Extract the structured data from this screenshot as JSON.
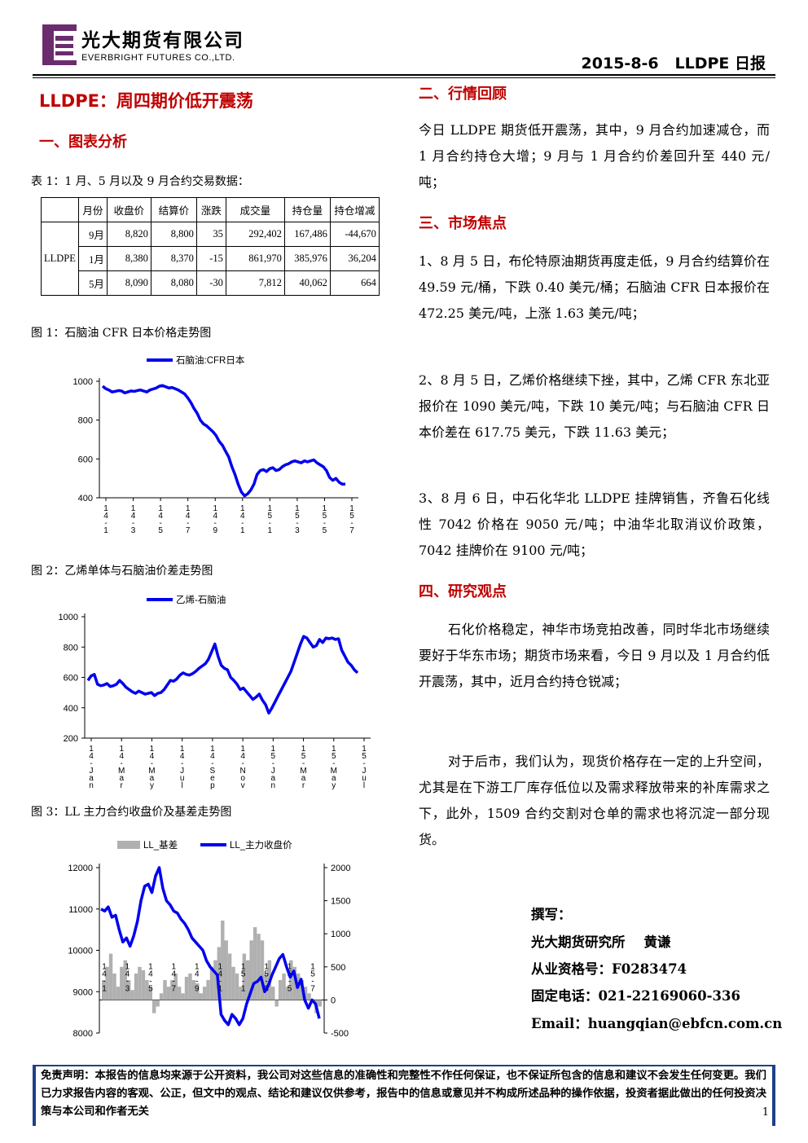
{
  "header": {
    "company_cn": "光大期货有限公司",
    "company_en": "EVERBRIGHT FUTURES CO.,LTD.",
    "report_id": "2015-8-6   LLDPE 日报"
  },
  "title": "LLDPE：周四期价低开震荡",
  "sections": {
    "s1": "一、图表分析",
    "s2": "二、行情回顾",
    "s3": "三、市场焦点",
    "s4": "四、研究观点"
  },
  "table": {
    "caption": "表 1：1 月、5 月以及 9 月合约交易数据：",
    "headers": [
      "",
      "月份",
      "收盘价",
      "结算价",
      "涨跌",
      "成交量",
      "持仓量",
      "持仓增减"
    ],
    "symbol": "LLDPE",
    "rows": [
      [
        "9月",
        "8,820",
        "8,800",
        "35",
        "292,402",
        "167,486",
        "-44,670"
      ],
      [
        "1月",
        "8,380",
        "8,370",
        "-15",
        "861,970",
        "385,976",
        "36,204"
      ],
      [
        "5月",
        "8,090",
        "8,080",
        "-30",
        "7,812",
        "40,062",
        "664"
      ]
    ]
  },
  "figures": {
    "fig1_caption": "图 1：石脑油 CFR 日本价格走势图",
    "fig2_caption": "图 2：乙烯单体与石脑油价差走势图",
    "fig3_caption": "图 3：LL 主力合约收盘价及基差走势图"
  },
  "review": "今日 LLDPE 期货低开震荡，其中，9 月合约加速减仓，而 1 月合约持仓大增；9 月与 1 月合约价差回升至 440 元/吨；",
  "focus": [
    "1、8 月 5 日，布伦特原油期货再度走低，9 月合约结算价在 49.59 元/桶，下跌 0.40 美元/桶；石脑油 CFR 日本报价在 472.25 美元/吨，上涨 1.63 美元/吨；",
    "2、8 月 5 日，乙烯价格继续下挫，其中，乙烯 CFR 东北亚报价在 1090 美元/吨，下跌 10 美元/吨；与石脑油 CFR 日本价差在 617.75 美元，下跌 11.63 美元；",
    "3、8 月 6 日，中石化华北 LLDPE 挂牌销售，齐鲁石化线性 7042 价格在 9050 元/吨；中油华北取消议价政策，7042 挂牌价在 9100 元/吨；"
  ],
  "opinion": [
    "石化价格稳定，神华市场竞拍改善，同时华北市场继续要好于华东市场；期货市场来看，今日 9 月以及 1 月合约低开震荡，其中，近月合约持仓锐减；",
    "对于后市，我们认为，现货价格存在一定的上升空间，尤其是在下游工厂库存低位以及需求释放带来的补库需求之下，此外，1509 合约交割对仓单的需求也将沉淀一部分现货。"
  ],
  "author": {
    "l1": "撰写：",
    "l2": "光大期货研究所    黄谦",
    "l3": "从业资格号：F0283474",
    "l4": "固定电话：021-22169060-336",
    "l5": "Email：huangqian@ebfcn.com.cn"
  },
  "disclaimer": "免责声明：本报告的信息均来源于公开资料，我公司对这些信息的准确性和完整性不作任何保证，也不保证所包含的信息和建议不会发生任何变更。我们已力求报告内容的客观、公正，但文中的观点、结论和建议仅供参考，报告中的信息或意见并不构成所述品种的操作依据，投资者据此做出的任何投资决策与本公司和作者无关",
  "page_number": "1",
  "chart_data": [
    {
      "type": "line",
      "legend": "石脑油:CFR日本",
      "ylim": [
        400,
        1000
      ],
      "yticks": [
        "1000",
        "800",
        "600",
        "400"
      ],
      "xticks": [
        "1\n4\n-\n1",
        "1\n4\n-\n3",
        "1\n4\n-\n5",
        "1\n4\n-\n7",
        "1\n4\n-\n9",
        "1\n4\n-\n1",
        "1\n5\n-\n1",
        "1\n5\n-\n3",
        "1\n5\n-\n5",
        "1\n5\n-\n7"
      ],
      "series": [
        {
          "name": "石脑油:CFR日本",
          "color": "#0000ee",
          "values": [
            975,
            962,
            955,
            945,
            948,
            952,
            950,
            940,
            945,
            950,
            948,
            952,
            955,
            950,
            945,
            955,
            960,
            965,
            975,
            978,
            972,
            965,
            968,
            962,
            955,
            945,
            935,
            915,
            890,
            860,
            835,
            800,
            780,
            770,
            755,
            740,
            720,
            690,
            670,
            640,
            610,
            560,
            520,
            470,
            430,
            410,
            420,
            440,
            470,
            520,
            540,
            545,
            535,
            550,
            555,
            540,
            545,
            560,
            570,
            575,
            585,
            590,
            585,
            580,
            590,
            585,
            590,
            595,
            580,
            570,
            560,
            540,
            505,
            490,
            500,
            480,
            470,
            470
          ]
        }
      ]
    },
    {
      "type": "line",
      "legend": "乙烯-石脑油",
      "ylim": [
        200,
        1000
      ],
      "yticks": [
        "1000",
        "800",
        "600",
        "400",
        "200"
      ],
      "xticks": [
        "1\n4\n-\nJ\na\nn",
        "1\n4\n-\nM\na\nr",
        "1\n4\n-\nM\na\ny",
        "1\n4\n-\nJ\nu\nl",
        "1\n4\n-\nS\ne\np",
        "1\n4\n-\nN\no\nv",
        "1\n5\n-\nJ\na\nn",
        "1\n5\n-\nM\na\nr",
        "1\n5\n-\nM\na\ny",
        "1\n5\n-\nJ\nu\nl"
      ],
      "series": [
        {
          "name": "乙烯-石脑油",
          "color": "#0000ee",
          "values": [
            580,
            610,
            620,
            555,
            545,
            550,
            560,
            540,
            545,
            555,
            580,
            560,
            535,
            520,
            505,
            495,
            510,
            500,
            490,
            495,
            500,
            480,
            495,
            500,
            520,
            550,
            580,
            575,
            590,
            615,
            630,
            620,
            615,
            625,
            640,
            660,
            675,
            690,
            720,
            770,
            820,
            740,
            680,
            660,
            650,
            600,
            580,
            555,
            520,
            530,
            505,
            480,
            455,
            470,
            490,
            450,
            420,
            365,
            400,
            440,
            480,
            520,
            560,
            600,
            640,
            700,
            760,
            820,
            870,
            860,
            830,
            800,
            810,
            850,
            830,
            860,
            855,
            860,
            850,
            855,
            780,
            740,
            700,
            680,
            650,
            630
          ]
        }
      ]
    },
    {
      "type": "bar+line",
      "legend": [
        "LL_基差",
        "LL_主力收盘价"
      ],
      "ylim_left": [
        8000,
        12000
      ],
      "ylim_right": [
        -500,
        2000
      ],
      "yticks_left": [
        "12000",
        "11000",
        "10000",
        "9000",
        "8000"
      ],
      "yticks_right": [
        "2000",
        "1500",
        "1000",
        "500",
        "0",
        "-500"
      ],
      "xticks": [
        "1\n4\n-\n1",
        "1\n4\n-\n3",
        "1\n4\n-\n5",
        "1\n4\n-\n7",
        "1\n4\n-\n9",
        "1\n4\n-\n1",
        "1\n5\n-\n1",
        "1\n5\n-\n3",
        "1\n5\n-\n5",
        "1\n5\n-\n7"
      ],
      "series": [
        {
          "name": "LL_基差",
          "color": "#b0b0b0",
          "values": [
            300,
            500,
            700,
            400,
            200,
            500,
            600,
            300,
            150,
            400,
            500,
            450,
            300,
            200,
            -200,
            -100,
            100,
            300,
            200,
            300,
            400,
            200,
            100,
            350,
            400,
            300,
            250,
            100,
            200,
            300,
            500,
            600,
            800,
            1200,
            900,
            700,
            500,
            400,
            200,
            700,
            600,
            900,
            1100,
            1000,
            900,
            400,
            600,
            200,
            -100,
            300,
            400,
            200,
            600,
            500,
            400,
            300,
            200,
            100,
            0,
            -200,
            -100
          ]
        },
        {
          "name": "LL_主力收盘价",
          "color": "#0000ee",
          "values": [
            11000,
            10950,
            11050,
            10800,
            10850,
            10500,
            10200,
            10300,
            10100,
            10350,
            10700,
            11200,
            11550,
            11600,
            11400,
            11800,
            12000,
            11500,
            11200,
            11100,
            10950,
            10900,
            10750,
            10650,
            10500,
            10300,
            10200,
            10100,
            10000,
            9750,
            9600,
            9500,
            9400,
            8450,
            8300,
            8200,
            8450,
            8350,
            8200,
            8350,
            8700,
            8950,
            9200,
            9250,
            9350,
            9000,
            9150,
            9400,
            9600,
            9800,
            9900,
            9600,
            9350,
            9500,
            9100,
            9300,
            8800,
            8600,
            8800,
            8700,
            8350
          ]
        }
      ]
    }
  ]
}
